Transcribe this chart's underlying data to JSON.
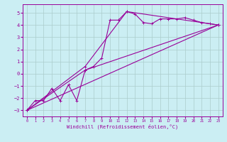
{
  "title": "",
  "xlabel": "Windchill (Refroidissement éolien,°C)",
  "ylabel": "",
  "bg_color": "#cbeef3",
  "line_color": "#990099",
  "grid_color": "#aacccc",
  "xlim": [
    -0.5,
    23.5
  ],
  "ylim": [
    -3.5,
    5.7
  ],
  "xticks": [
    0,
    1,
    2,
    3,
    4,
    5,
    6,
    7,
    8,
    9,
    10,
    11,
    12,
    13,
    14,
    15,
    16,
    17,
    18,
    19,
    20,
    21,
    22,
    23
  ],
  "yticks": [
    -3,
    -2,
    -1,
    0,
    1,
    2,
    3,
    4,
    5
  ],
  "series": [
    [
      0,
      -3.0
    ],
    [
      1,
      -2.2
    ],
    [
      2,
      -2.2
    ],
    [
      3,
      -1.2
    ],
    [
      4,
      -2.2
    ],
    [
      5,
      -0.9
    ],
    [
      6,
      -2.2
    ],
    [
      7,
      0.3
    ],
    [
      8,
      0.6
    ],
    [
      9,
      1.3
    ],
    [
      10,
      4.4
    ],
    [
      11,
      4.4
    ],
    [
      12,
      5.1
    ],
    [
      13,
      4.9
    ],
    [
      14,
      4.2
    ],
    [
      15,
      4.1
    ],
    [
      16,
      4.5
    ],
    [
      17,
      4.5
    ],
    [
      18,
      4.5
    ],
    [
      19,
      4.6
    ],
    [
      20,
      4.4
    ],
    [
      21,
      4.2
    ],
    [
      22,
      4.1
    ],
    [
      23,
      4.0
    ]
  ],
  "line2": [
    [
      0,
      -3.0
    ],
    [
      23,
      4.0
    ]
  ],
  "line3": [
    [
      0,
      -3.0
    ],
    [
      7,
      0.3
    ],
    [
      23,
      4.0
    ]
  ],
  "line4": [
    [
      0,
      -3.0
    ],
    [
      7,
      0.6
    ],
    [
      12,
      5.1
    ],
    [
      23,
      4.0
    ]
  ]
}
